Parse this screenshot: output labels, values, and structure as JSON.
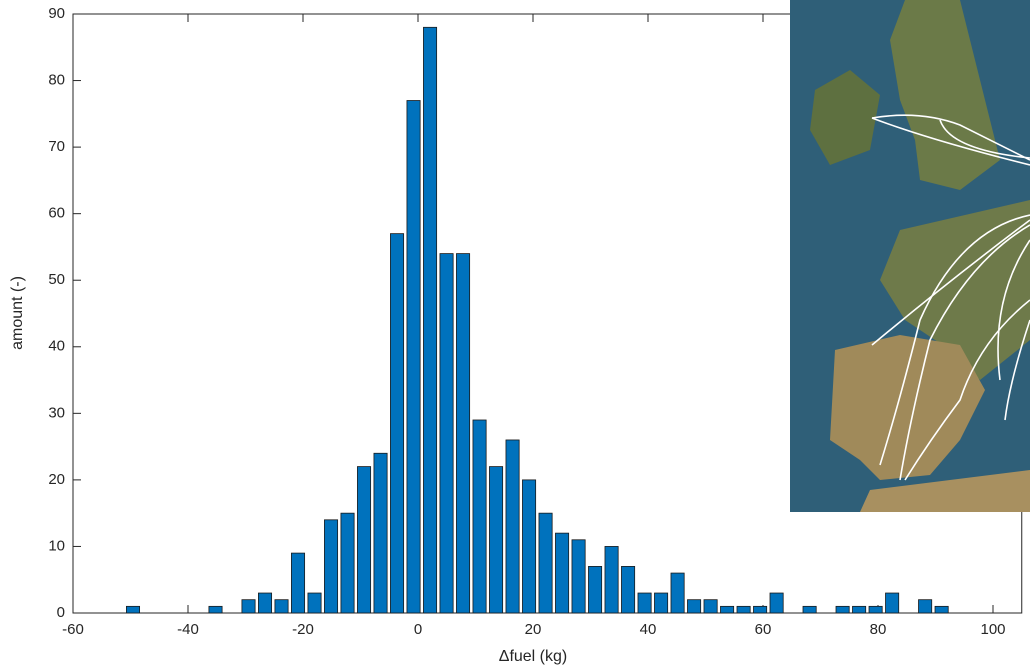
{
  "chart_data": {
    "type": "histogram",
    "xlabel": "Δfuel (kg)",
    "ylabel": "amount (-)",
    "bins": [
      -51,
      -48.13,
      -45.26,
      -42.39,
      -39.52,
      -36.65,
      -33.78,
      -30.91,
      -28.04,
      -25.17,
      -22.3,
      -19.43,
      -16.56,
      -13.69,
      -10.82,
      -7.95,
      -5.08,
      -2.21,
      0.66,
      3.53,
      6.4,
      9.27,
      12.14,
      15.01,
      17.88,
      20.75,
      23.62,
      26.49,
      29.36,
      32.23,
      35.1,
      37.97,
      40.84,
      43.71,
      46.58,
      49.45,
      52.32,
      55.19,
      58.06,
      60.93,
      63.8,
      66.67,
      69.54,
      72.41,
      75.28,
      78.15,
      81.02,
      83.89,
      86.76,
      89.63,
      92.5
    ],
    "counts": [
      1,
      0,
      0,
      0,
      0,
      1,
      0,
      2,
      3,
      2,
      9,
      3,
      14,
      15,
      22,
      24,
      57,
      77,
      88,
      54,
      54,
      29,
      22,
      26,
      20,
      15,
      12,
      11,
      7,
      10,
      7,
      3,
      3,
      6,
      2,
      2,
      1,
      1,
      1,
      3,
      0,
      1,
      0,
      1,
      1,
      1,
      3,
      0,
      2,
      1
    ],
    "color": "#0072bd",
    "xlim": [
      -60,
      105
    ],
    "ylim": [
      0,
      90
    ],
    "xticks": [
      -60,
      -40,
      -20,
      0,
      20,
      40,
      60,
      80,
      100
    ],
    "yticks": [
      0,
      10,
      20,
      30,
      40,
      50,
      60,
      70,
      80,
      90
    ]
  }
}
